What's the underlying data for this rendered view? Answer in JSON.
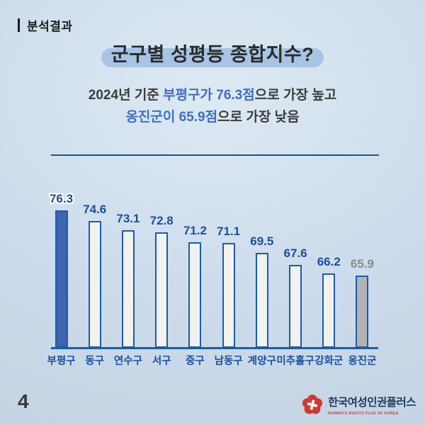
{
  "theme": {
    "bg_edge": "#c3d3e2",
    "bg_center": "#dde9f2",
    "accent_blue": "#1e5ca6",
    "navy_label": "#1b4f9c",
    "text_dark": "#2b2b2b",
    "subtitle_blue": "#3e6ec4",
    "title_pill": "#a8c4e4",
    "divider_core": "#4a80c2",
    "divider_edge": "#1d5295",
    "gray_label": "#8a8a8a",
    "brand_red": "#cf3a31",
    "brand_navy": "#1c3a5e"
  },
  "header": {
    "section_label": "분석결과",
    "title": "군구별 성평등 종합지수?",
    "subtitle": {
      "l1_pre": "2024년 기준 ",
      "l1_highlight": "부평구가 76.3점",
      "l1_post": "으로 가장 높고",
      "l2_highlight": "옹진군이 65.9점",
      "l2_post": "으로 가장 낮음"
    }
  },
  "chart_data": {
    "type": "bar",
    "title": "군구별 성평등 종합지수",
    "categories": [
      "부평구",
      "동구",
      "연수구",
      "서구",
      "중구",
      "남동구",
      "계양구",
      "미추홀구",
      "강화군",
      "옹진군"
    ],
    "values": [
      76.3,
      74.6,
      73.1,
      72.8,
      71.2,
      71.1,
      69.5,
      67.6,
      66.2,
      65.9
    ],
    "xlabel": "",
    "ylabel": "",
    "grid": false,
    "legend": false,
    "value_labels_shown": true,
    "max_bar_color": "#3e64ad",
    "default_bar_color": "#f1f1ef",
    "min_bar_color": "#b3b3b3",
    "bar_border_color": "#1e5ca6",
    "value_label_color": "#1b4f9c",
    "min_value_label_color": "#8a8a8a"
  },
  "footer": {
    "page_number": "4",
    "logo": {
      "icon": "flower-cross-icon",
      "name": "한국여성인권플러스",
      "tagline": "WOMEN'S RIGHTS PLUS OF KOREA"
    }
  }
}
